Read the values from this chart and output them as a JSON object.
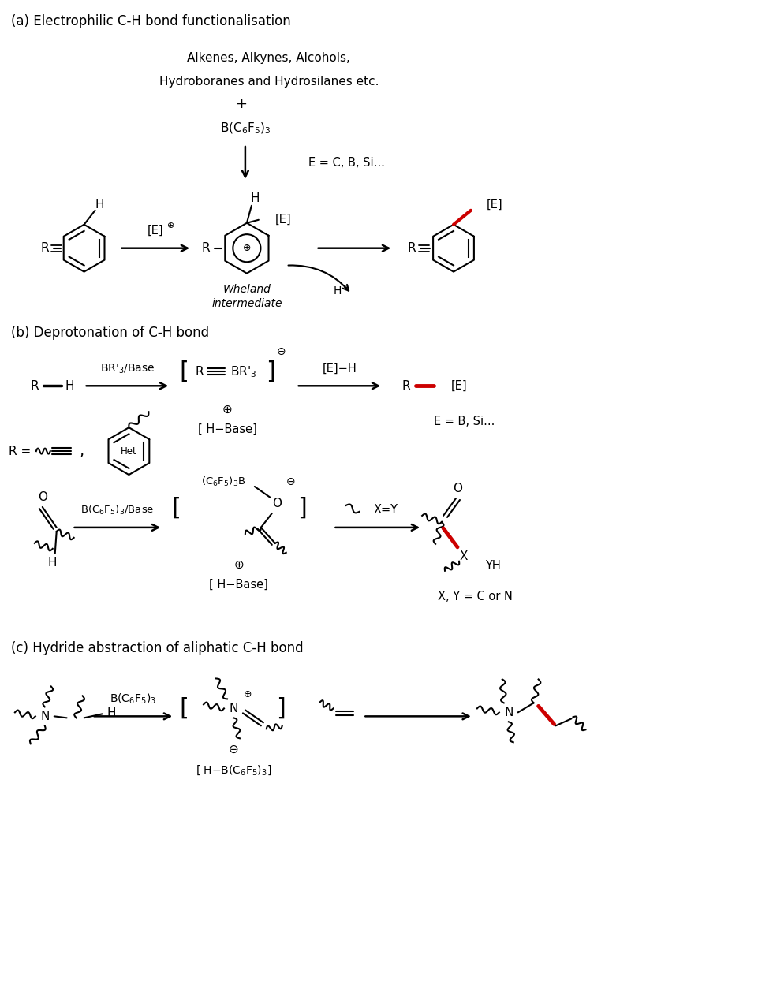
{
  "bg_color": "#ffffff",
  "black": "#000000",
  "red": "#cc0000",
  "section_a_title": "(a) Electrophilic C-H bond functionalisation",
  "section_b_title": "(b) Deprotonation of C-H bond",
  "section_c_title": "(c) Hydride abstraction of aliphatic C-H bond",
  "figsize": [
    9.8,
    12.44
  ],
  "dpi": 100
}
